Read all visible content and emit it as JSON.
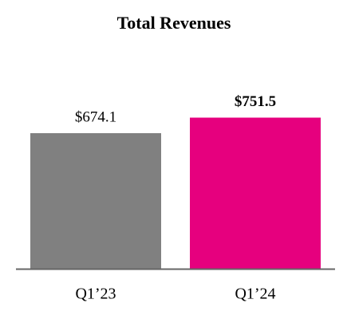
{
  "chart_data": {
    "type": "bar",
    "title": "Total Revenues",
    "categories": [
      "Q1’23",
      "Q1’24"
    ],
    "values": [
      674.1,
      751.5
    ],
    "value_labels": [
      "$674.1",
      "$751.5"
    ],
    "value_label_bold": [
      false,
      true
    ],
    "colors": [
      "#808080",
      "#e6007e"
    ]
  }
}
